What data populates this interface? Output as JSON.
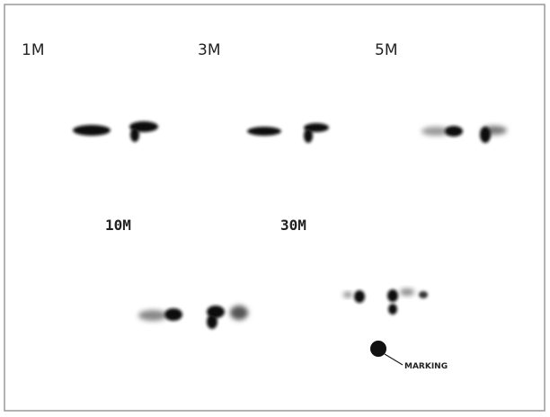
{
  "panels": [
    {
      "label": "1M"
    },
    {
      "label": "3M"
    },
    {
      "label": "5M"
    },
    {
      "label": "10M"
    },
    {
      "label": "30M"
    }
  ],
  "annotation": {
    "label": "MARKING"
  }
}
